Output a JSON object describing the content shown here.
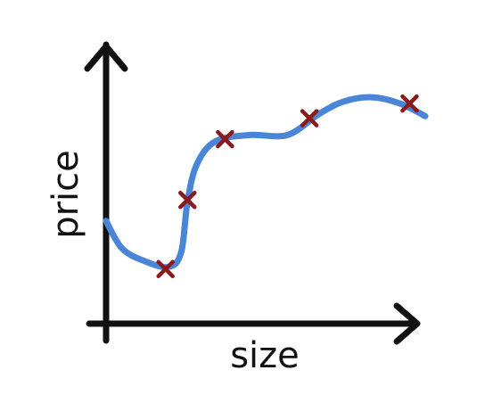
{
  "chart_data": {
    "type": "scatter",
    "xlabel": "size",
    "ylabel": "price",
    "xlim": [
      0,
      10
    ],
    "ylim": [
      0,
      10
    ],
    "grid": false,
    "legend": "none",
    "points": [
      {
        "x": 1.9,
        "y": 1.2
      },
      {
        "x": 2.6,
        "y": 4.5
      },
      {
        "x": 3.8,
        "y": 7.4
      },
      {
        "x": 6.5,
        "y": 8.4
      },
      {
        "x": 9.7,
        "y": 9.1
      }
    ],
    "fit_curve": [
      {
        "x": 0.0,
        "y": 3.5
      },
      {
        "x": 0.5,
        "y": 2.2
      },
      {
        "x": 1.2,
        "y": 1.6
      },
      {
        "x": 2.0,
        "y": 1.3
      },
      {
        "x": 2.4,
        "y": 2.0
      },
      {
        "x": 2.6,
        "y": 4.4
      },
      {
        "x": 2.9,
        "y": 6.2
      },
      {
        "x": 3.5,
        "y": 7.3
      },
      {
        "x": 4.6,
        "y": 7.6
      },
      {
        "x": 5.8,
        "y": 7.6
      },
      {
        "x": 6.8,
        "y": 8.6
      },
      {
        "x": 7.6,
        "y": 9.2
      },
      {
        "x": 8.5,
        "y": 9.4
      },
      {
        "x": 9.4,
        "y": 9.1
      },
      {
        "x": 10.2,
        "y": 8.5
      }
    ],
    "colors": {
      "axis": "#111111",
      "curve": "#4a85d8",
      "marker": "#8b1a1a"
    }
  }
}
